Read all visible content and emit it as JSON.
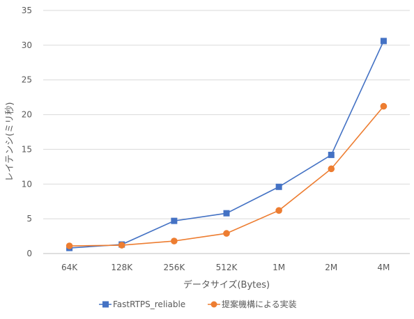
{
  "chart_data": {
    "type": "line",
    "title": "",
    "xlabel": "データサイズ(Bytes)",
    "ylabel": "レイテンシ(ミリ秒)",
    "categories": [
      "64K",
      "128K",
      "256K",
      "512K",
      "1M",
      "2M",
      "4M"
    ],
    "ylim": [
      0,
      35
    ],
    "yticks": [
      0,
      5,
      10,
      15,
      20,
      25,
      30,
      35
    ],
    "grid": true,
    "legend_position": "bottom",
    "series": [
      {
        "name": "FastRTPS_reliable",
        "color": "#4472C4",
        "marker": "square",
        "values": [
          0.8,
          1.3,
          4.7,
          5.8,
          9.6,
          14.2,
          30.6
        ]
      },
      {
        "name": "提案機構による実装",
        "color": "#ED7D31",
        "marker": "circle",
        "values": [
          1.1,
          1.2,
          1.8,
          2.9,
          6.2,
          12.2,
          21.2
        ]
      }
    ]
  }
}
